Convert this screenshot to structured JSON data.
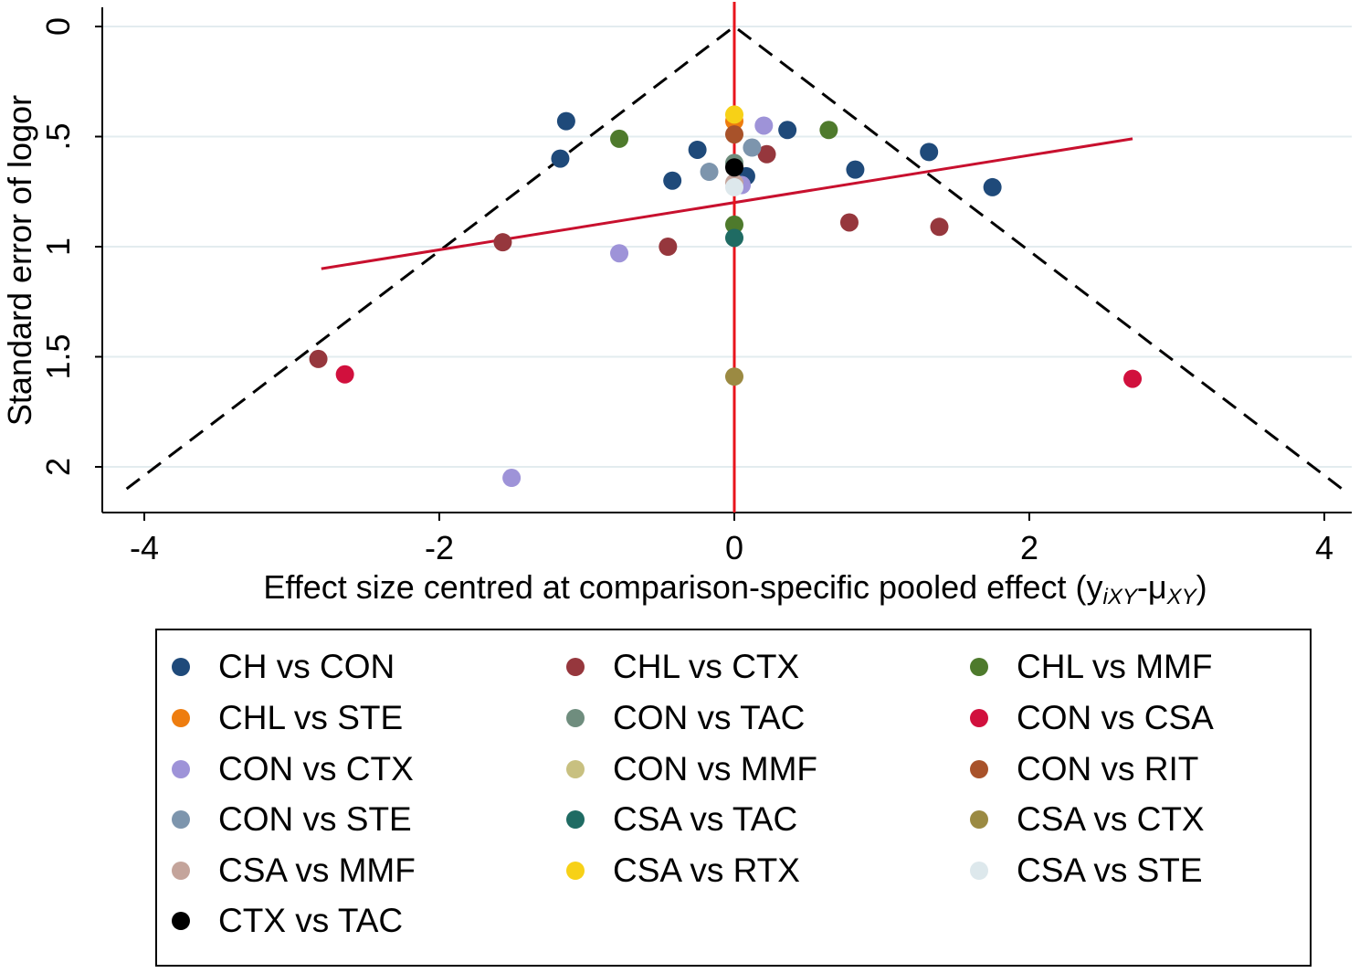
{
  "chart_data": {
    "type": "scatter",
    "title": "",
    "xlabel": "Effect size centred at comparison-specific pooled effect (y",
    "xlabel_subscript_1": "iXY",
    "xlabel_mid": "-μ",
    "xlabel_subscript_2": "XY",
    "xlabel_end": ")",
    "ylabel": "Standard error of logor",
    "xlim": [
      -4.2,
      4.15
    ],
    "ylim": [
      0,
      2.2
    ],
    "y_reversed": true,
    "x_ticks": [
      -4,
      -2,
      0,
      2,
      4
    ],
    "x_tick_labels": [
      "-4",
      "-2",
      "0",
      "2",
      "4"
    ],
    "y_ticks": [
      0,
      0.5,
      1,
      1.5,
      2
    ],
    "y_tick_labels": [
      "0",
      ".5",
      "1",
      "1.5",
      "2"
    ],
    "grid": "horizontal",
    "reference_line": {
      "x": 0,
      "color": "#e8141c"
    },
    "funnel": {
      "apex": [
        0,
        0
      ],
      "left": [
        -4.12,
        2.1
      ],
      "right": [
        4.12,
        2.1
      ]
    },
    "regression_line": {
      "points": [
        [
          -2.8,
          1.1
        ],
        [
          2.7,
          0.51
        ]
      ],
      "color": "#c8102e"
    },
    "series": [
      {
        "name": "CH vs CON",
        "color": "#1f4a7a",
        "points": [
          [
            -1.14,
            0.43
          ],
          [
            -1.18,
            0.6
          ],
          [
            -0.25,
            0.56
          ],
          [
            -0.42,
            0.7
          ],
          [
            0.36,
            0.47
          ],
          [
            0.08,
            0.68
          ],
          [
            0.82,
            0.65
          ],
          [
            1.32,
            0.57
          ],
          [
            1.75,
            0.73
          ]
        ]
      },
      {
        "name": "CHL vs CTX",
        "color": "#96373d",
        "points": [
          [
            0.22,
            0.58
          ],
          [
            -1.57,
            0.98
          ],
          [
            -0.45,
            1.0
          ],
          [
            0.78,
            0.89
          ],
          [
            1.39,
            0.91
          ],
          [
            -2.82,
            1.51
          ]
        ]
      },
      {
        "name": "CHL vs MMF",
        "color": "#4e7a2c",
        "points": [
          [
            -0.78,
            0.51
          ],
          [
            0.64,
            0.47
          ],
          [
            0.0,
            0.9
          ]
        ]
      },
      {
        "name": "CHL vs STE",
        "color": "#ee7d0f",
        "points": [
          [
            0.0,
            0.43
          ]
        ]
      },
      {
        "name": "CON vs TAC",
        "color": "#6f8d7e",
        "points": [
          [
            0.0,
            0.62
          ]
        ]
      },
      {
        "name": "CON vs CSA",
        "color": "#d1103d",
        "points": [
          [
            -2.64,
            1.58
          ],
          [
            2.7,
            1.6
          ]
        ]
      },
      {
        "name": "CON vs CTX",
        "color": "#9e93d8",
        "points": [
          [
            0.2,
            0.45
          ],
          [
            0.05,
            0.72
          ],
          [
            -0.78,
            1.03
          ],
          [
            -1.51,
            2.05
          ]
        ]
      },
      {
        "name": "CON vs MMF",
        "color": "#c8c080",
        "points": []
      },
      {
        "name": "CON vs RIT",
        "color": "#a8522a",
        "points": [
          [
            0.0,
            0.49
          ]
        ]
      },
      {
        "name": "CON vs STE",
        "color": "#7d95ad",
        "points": [
          [
            -0.17,
            0.66
          ],
          [
            0.12,
            0.55
          ]
        ]
      },
      {
        "name": "CSA vs TAC",
        "color": "#1f6b63",
        "points": [
          [
            0.0,
            0.96
          ]
        ]
      },
      {
        "name": "CSA vs CTX",
        "color": "#9b8a42",
        "points": [
          [
            0.0,
            1.59
          ]
        ]
      },
      {
        "name": "CSA vs MMF",
        "color": "#c4a49b",
        "points": [
          [
            0.0,
            0.71
          ]
        ]
      },
      {
        "name": "CSA vs RTX",
        "color": "#f7d117",
        "points": [
          [
            0.0,
            0.4
          ]
        ]
      },
      {
        "name": "CSA vs STE",
        "color": "#dde8ec",
        "points": [
          [
            0.0,
            0.73
          ]
        ]
      },
      {
        "name": "CTX vs TAC",
        "color": "#000000",
        "points": [
          [
            0.0,
            0.64
          ]
        ]
      }
    ]
  },
  "legend": {
    "items": [
      {
        "label": "CH vs CON",
        "color": "#1f4a7a"
      },
      {
        "label": "CHL vs CTX",
        "color": "#96373d"
      },
      {
        "label": "CHL vs MMF",
        "color": "#4e7a2c"
      },
      {
        "label": "CHL vs STE",
        "color": "#ee7d0f"
      },
      {
        "label": "CON vs TAC",
        "color": "#6f8d7e"
      },
      {
        "label": "CON vs CSA",
        "color": "#d1103d"
      },
      {
        "label": "CON vs CTX",
        "color": "#9e93d8"
      },
      {
        "label": "CON vs MMF",
        "color": "#c8c080"
      },
      {
        "label": "CON vs RIT",
        "color": "#a8522a"
      },
      {
        "label": "CON vs STE",
        "color": "#7d95ad"
      },
      {
        "label": "CSA vs TAC",
        "color": "#1f6b63"
      },
      {
        "label": "CSA vs CTX",
        "color": "#9b8a42"
      },
      {
        "label": "CSA vs MMF",
        "color": "#c4a49b"
      },
      {
        "label": "CSA vs RTX",
        "color": "#f7d117"
      },
      {
        "label": "CSA vs STE",
        "color": "#dde8ec"
      },
      {
        "label": "CTX vs TAC",
        "color": "#000000"
      }
    ]
  }
}
